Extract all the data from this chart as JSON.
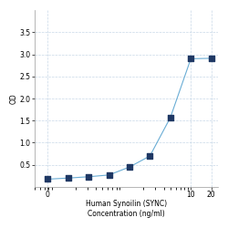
{
  "x": [
    0.078,
    0.156,
    0.313,
    0.625,
    1.25,
    2.5,
    5,
    10,
    20
  ],
  "y": [
    0.175,
    0.2,
    0.23,
    0.27,
    0.45,
    0.7,
    1.57,
    2.9,
    2.91
  ],
  "line_color": "#6aadd5",
  "marker_color": "#1f3864",
  "marker_size": 4,
  "xlabel_line1": "Human Synoilin (SYNC)",
  "xlabel_line2": "Concentration (ng/ml)",
  "ylabel": "OD",
  "xlim": [
    0.05,
    25
  ],
  "ylim": [
    0.0,
    4.0
  ],
  "yticks": [
    0.5,
    1.0,
    1.5,
    2.0,
    2.5,
    3.0,
    3.5
  ],
  "xtick_locs": [
    0.078,
    10,
    20
  ],
  "xtick_labels": [
    "0",
    "10",
    "20"
  ],
  "grid_color": "#c8d8e8",
  "background_color": "#ffffff",
  "axis_fontsize": 5.5,
  "tick_fontsize": 5.5,
  "figsize": [
    2.5,
    2.5
  ],
  "dpi": 100
}
